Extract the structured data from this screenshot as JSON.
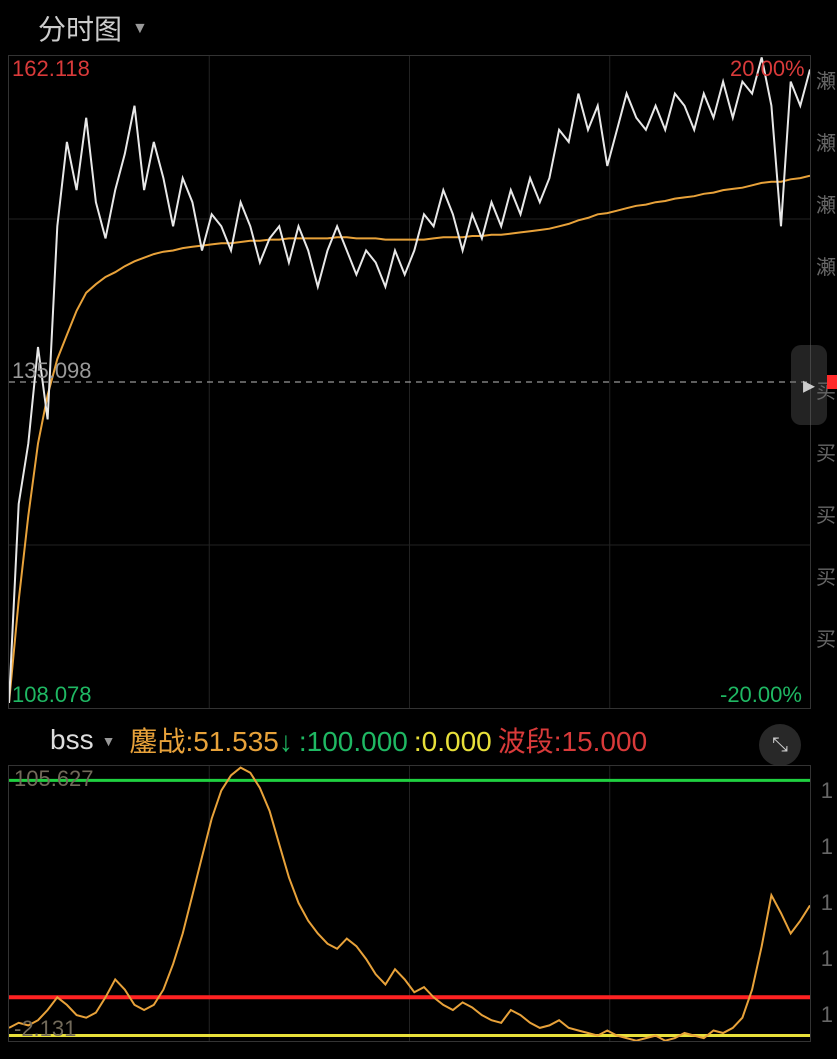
{
  "header": {
    "title": "分时图"
  },
  "main_chart": {
    "top_left_label": "162.118",
    "top_right_label": "20.00%",
    "mid_label": "135.098",
    "bottom_left_label": "108.078",
    "bottom_right_label": "-20.00%",
    "top_color": "#d93a3a",
    "bottom_color": "#1fb863",
    "mid_color": "#999999",
    "grid_color": "#222222",
    "background": "#000000",
    "ylim": [
      108.078,
      162.118
    ],
    "mid_value": 135.098,
    "pct_lim": [
      -20.0,
      20.0
    ],
    "grid_v_count": 4,
    "grid_h_positions": [
      0,
      0.25,
      0.5,
      0.75,
      1.0
    ],
    "price_line": {
      "color": "#e8e8e8",
      "width": 2,
      "values": [
        108.5,
        125,
        130,
        138,
        132,
        148,
        155,
        151,
        157,
        150,
        147,
        151,
        154,
        158,
        151,
        155,
        152,
        148,
        152,
        150,
        146,
        149,
        148,
        146,
        150,
        148,
        145,
        147,
        148,
        145,
        148,
        146,
        143,
        146,
        148,
        146,
        144,
        146,
        145,
        143,
        146,
        144,
        146,
        149,
        148,
        151,
        149,
        146,
        149,
        147,
        150,
        148,
        151,
        149,
        152,
        150,
        152,
        156,
        155,
        159,
        156,
        158,
        153,
        156,
        159,
        157,
        156,
        158,
        156,
        159,
        158,
        156,
        159,
        157,
        160,
        157,
        160,
        159,
        162,
        158,
        148,
        160,
        158,
        161
      ]
    },
    "avg_line": {
      "color": "#e8a23a",
      "width": 2,
      "values": [
        108.5,
        117,
        124,
        130,
        134,
        137,
        139,
        141,
        142.5,
        143.2,
        143.8,
        144.2,
        144.7,
        145.1,
        145.4,
        145.7,
        145.9,
        146.0,
        146.2,
        146.3,
        146.4,
        146.5,
        146.6,
        146.6,
        146.7,
        146.8,
        146.8,
        146.9,
        146.9,
        147.0,
        147.0,
        147.0,
        147.0,
        147.0,
        147.1,
        147.1,
        147.0,
        147.0,
        147.0,
        146.9,
        146.9,
        146.9,
        146.9,
        146.9,
        147.0,
        147.1,
        147.1,
        147.1,
        147.2,
        147.2,
        147.3,
        147.3,
        147.4,
        147.5,
        147.6,
        147.7,
        147.8,
        148.0,
        148.2,
        148.5,
        148.7,
        149.0,
        149.1,
        149.3,
        149.5,
        149.7,
        149.8,
        150.0,
        150.1,
        150.3,
        150.4,
        150.5,
        150.7,
        150.8,
        151.0,
        151.1,
        151.2,
        151.4,
        151.6,
        151.7,
        151.7,
        151.9,
        152.0,
        152.2
      ]
    }
  },
  "indicator_header": {
    "name": "bss",
    "name_color": "#dddddd",
    "segments": [
      {
        "label": "鏖战:",
        "value": "51.535",
        "color": "#e8a23a",
        "arrow": "down",
        "arrow_color": "#1fb863"
      },
      {
        "label": ":",
        "value": "100.000",
        "color": "#1fb863"
      },
      {
        "label": ":",
        "value": "0.000",
        "color": "#e8e03a"
      },
      {
        "label": "波段:",
        "value": "15.000",
        "color": "#d93a3a"
      }
    ]
  },
  "sub_chart": {
    "top_label": "105.627",
    "bottom_label": "-2.131",
    "label_color": "#726a5a",
    "ylim": [
      -2.131,
      105.627
    ],
    "background": "#000000",
    "grid_v_count": 4,
    "h_lines": [
      {
        "y": 100,
        "color": "#1fd040",
        "width": 3
      },
      {
        "y": 15,
        "color": "#ff2222",
        "width": 4
      },
      {
        "y": 0,
        "color": "#e8e03a",
        "width": 3
      }
    ],
    "curve": {
      "color": "#e8a23a",
      "width": 2,
      "values": [
        3,
        5,
        4,
        6,
        10,
        15,
        12,
        8,
        7,
        9,
        15,
        22,
        18,
        12,
        10,
        12,
        18,
        28,
        40,
        55,
        70,
        85,
        96,
        102,
        105,
        103,
        97,
        88,
        75,
        62,
        52,
        45,
        40,
        36,
        34,
        38,
        35,
        30,
        24,
        20,
        26,
        22,
        17,
        19,
        15,
        12,
        10,
        13,
        11,
        8,
        6,
        5,
        10,
        8,
        5,
        3,
        4,
        6,
        3,
        2,
        1,
        0,
        2,
        0,
        -1,
        -2,
        -1,
        0,
        -2,
        -1,
        1,
        0,
        -1,
        2,
        1,
        3,
        7,
        18,
        35,
        55,
        48,
        40,
        45,
        51
      ]
    },
    "right_markers": [
      "1",
      "1",
      "1",
      "1",
      "1"
    ]
  },
  "side_labels": [
    "瀬",
    "瀬",
    "瀬",
    "瀬",
    "",
    "买",
    "买",
    "买",
    "买",
    "买"
  ]
}
